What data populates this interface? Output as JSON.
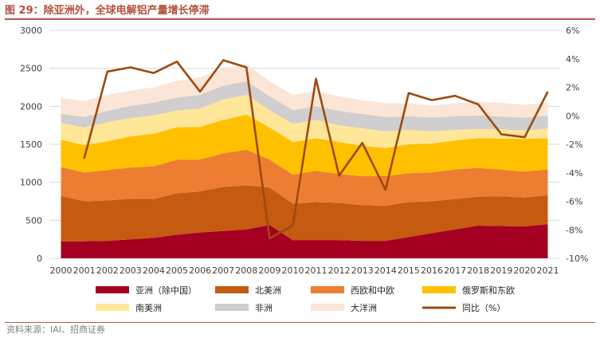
{
  "figure": {
    "title": "图 29：除亚洲外，全球电解铝产量增长停滞",
    "source": "资料来源：IAI、招商证券"
  },
  "colors": {
    "asia_ex_china": "#a50021",
    "north_america": "#c55a11",
    "europe": "#ed7d31",
    "russia_east_europe": "#ffc000",
    "south_america": "#ffe699",
    "africa": "#d0cece",
    "oceania": "#fbe5d6",
    "yoy_line": "#9c4a10",
    "title": "#b5503a"
  },
  "chart_data": {
    "type": "area",
    "x": [
      "2000",
      "2001",
      "2002",
      "2003",
      "2004",
      "2005",
      "2006",
      "2007",
      "2008",
      "2009",
      "2010",
      "2011",
      "2012",
      "2013",
      "2014",
      "2015",
      "2016",
      "2017",
      "2018",
      "2019",
      "2020",
      "2021"
    ],
    "stacking": "stacked",
    "series": [
      {
        "name": "亚洲（除中国）",
        "color": "#a50021",
        "values": [
          220,
          225,
          230,
          250,
          270,
          310,
          340,
          360,
          380,
          440,
          240,
          240,
          240,
          230,
          230,
          280,
          330,
          380,
          430,
          425,
          420,
          450
        ]
      },
      {
        "name": "北美洲",
        "color": "#c55a11",
        "values": [
          600,
          525,
          530,
          535,
          510,
          545,
          540,
          580,
          580,
          490,
          480,
          500,
          490,
          470,
          460,
          460,
          420,
          400,
          380,
          390,
          380,
          380
        ]
      },
      {
        "name": "西欧和中欧",
        "color": "#ed7d31",
        "values": [
          380,
          380,
          400,
          410,
          430,
          440,
          420,
          440,
          470,
          370,
          380,
          410,
          380,
          380,
          390,
          380,
          380,
          390,
          380,
          350,
          340,
          340
        ]
      },
      {
        "name": "俄罗斯和东欧",
        "color": "#ffc000",
        "values": [
          360,
          360,
          380,
          410,
          430,
          430,
          430,
          440,
          460,
          420,
          430,
          430,
          420,
          400,
          370,
          380,
          380,
          380,
          390,
          410,
          430,
          410
        ]
      },
      {
        "name": "南美洲",
        "color": "#ffe699",
        "values": [
          220,
          230,
          250,
          240,
          240,
          220,
          240,
          270,
          260,
          230,
          240,
          240,
          220,
          230,
          220,
          190,
          160,
          140,
          120,
          120,
          110,
          130
        ]
      },
      {
        "name": "非洲",
        "color": "#d0cece",
        "values": [
          120,
          140,
          150,
          160,
          170,
          170,
          180,
          180,
          180,
          180,
          180,
          180,
          190,
          190,
          190,
          180,
          180,
          180,
          180,
          170,
          170,
          170
        ]
      },
      {
        "name": "大洋洲",
        "color": "#fbe5d6",
        "values": [
          210,
          210,
          210,
          200,
          200,
          220,
          230,
          230,
          220,
          200,
          200,
          200,
          190,
          180,
          180,
          170,
          160,
          170,
          180,
          180,
          170,
          170
        ]
      }
    ],
    "line": {
      "name": "同比（%）",
      "axis": "right",
      "color": "#9c4a10",
      "values": [
        -3.0,
        3.1,
        3.4,
        3.0,
        3.8,
        1.7,
        3.9,
        3.4,
        -8.6,
        -7.7,
        2.6,
        -4.2,
        -1.9,
        -5.2,
        1.6,
        1.1,
        1.4,
        0.8,
        -1.3,
        -1.5,
        1.7
      ]
    },
    "line_x_start": "2001",
    "y_left": {
      "min": 0,
      "max": 3000,
      "ticks": [
        "0",
        "500",
        "1000",
        "1500",
        "2000",
        "2500",
        "3000"
      ]
    },
    "y_right": {
      "min": -10,
      "max": 6,
      "ticks": [
        "-10%",
        "-8%",
        "-6%",
        "-4%",
        "-2%",
        "0%",
        "2%",
        "4%",
        "6%"
      ]
    },
    "grid": true,
    "legend_position": "bottom",
    "legend": [
      "亚洲（除中国）",
      "北美洲",
      "西欧和中欧",
      "俄罗斯和东欧",
      "南美洲",
      "非洲",
      "大洋洲",
      "同比（%）"
    ]
  }
}
